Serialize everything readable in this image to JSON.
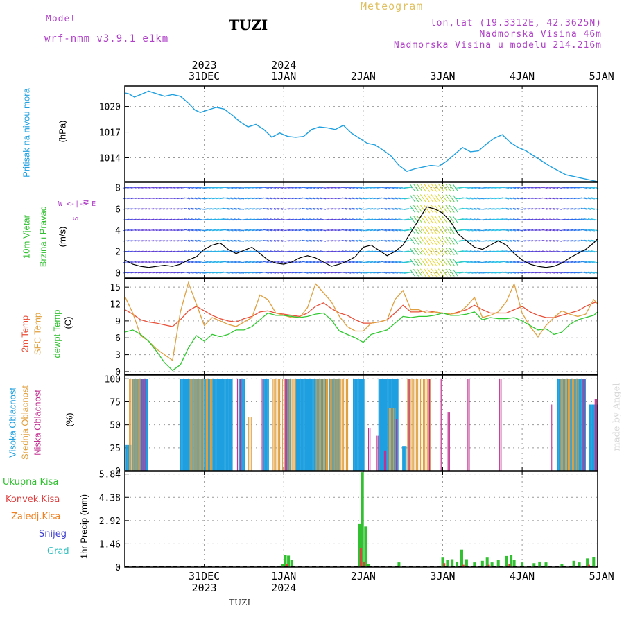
{
  "header": {
    "model_label": "Model",
    "model_name": "wrf-nmm_v3.9.1 e1km",
    "station": "TUZI",
    "meteogram": "Meteogram",
    "lonlat": "lon,lat (19.3312E, 42.3625N)",
    "elev": "Nadmorska Visina 46m",
    "elev_model": "Nadmorska Visina u modelu 214.216m"
  },
  "footer": {
    "station": "TUZI",
    "credit": "made by Angel"
  },
  "colors": {
    "pressure": "#1ea0e0",
    "temp2m": "#e8503a",
    "sfc": "#e0a040",
    "dewpt": "#30c830",
    "high": "#1ea0e0",
    "mid": "#e0a040",
    "low": "#c03090",
    "total": "#30c030",
    "conv": "#e04040",
    "frozen": "#f08020",
    "snow": "#4040d0",
    "grad": "#30c0c0"
  },
  "chart_data": [
    {
      "type": "line",
      "panel": "pressure",
      "title": "",
      "ylabel": [
        "Pritisak na nivou mora",
        "(hPa)"
      ],
      "yticks": [
        1014,
        1017,
        1020
      ],
      "ylim": [
        1011.2,
        1022.4
      ],
      "xticks_top": [
        {
          "day": "31DEC",
          "year": "2023",
          "x": 0.5
        },
        {
          "day": "1JAN",
          "year": "2024",
          "x": 1.5
        },
        {
          "day": "2JAN",
          "x": 2.5
        },
        {
          "day": "3JAN",
          "x": 3.5
        },
        {
          "day": "4JAN",
          "x": 4.5
        },
        {
          "day": "5JAN",
          "x": 5.5
        }
      ],
      "xlim": [
        -0.5,
        5.45
      ],
      "x": [
        -0.5,
        -0.45,
        -0.38,
        -0.3,
        -0.2,
        -0.1,
        0.0,
        0.1,
        0.2,
        0.3,
        0.38,
        0.45,
        0.55,
        0.65,
        0.75,
        0.85,
        0.95,
        1.05,
        1.15,
        1.25,
        1.35,
        1.45,
        1.55,
        1.65,
        1.75,
        1.85,
        1.95,
        2.05,
        2.15,
        2.25,
        2.35,
        2.45,
        2.55,
        2.65,
        2.75,
        2.85,
        2.95,
        3.05,
        3.15,
        3.25,
        3.35,
        3.45,
        3.55,
        3.65,
        3.75,
        3.85,
        3.95,
        4.05,
        4.15,
        4.25,
        4.35,
        4.45,
        4.55,
        4.65,
        4.75,
        4.85,
        4.95,
        5.05,
        5.15,
        5.25,
        5.35,
        5.45
      ],
      "y": [
        1021.6,
        1021.5,
        1021.1,
        1021.4,
        1021.8,
        1021.5,
        1021.2,
        1021.4,
        1021.2,
        1020.4,
        1019.6,
        1019.3,
        1019.6,
        1019.9,
        1019.7,
        1019.0,
        1018.2,
        1017.6,
        1017.9,
        1017.3,
        1016.4,
        1016.9,
        1016.5,
        1016.4,
        1016.5,
        1017.3,
        1017.6,
        1017.5,
        1017.3,
        1017.8,
        1016.9,
        1016.3,
        1015.7,
        1015.5,
        1014.9,
        1014.2,
        1013.1,
        1012.4,
        1012.7,
        1012.9,
        1013.1,
        1013.0,
        1013.6,
        1014.4,
        1015.2,
        1014.7,
        1014.8,
        1015.6,
        1016.3,
        1016.7,
        1015.8,
        1015.2,
        1014.8,
        1014.2,
        1013.6,
        1013.0,
        1012.5,
        1012.0,
        1011.8,
        1011.6,
        1011.4,
        1011.2
      ]
    },
    {
      "type": "line",
      "panel": "wind",
      "ylabel": [
        "10m Vjetar",
        "Brzina i Pravac",
        "(m/s)"
      ],
      "compass": [
        "N",
        "W <-|-> E",
        "S"
      ],
      "yticks": [
        0,
        2,
        4,
        6,
        8
      ],
      "ylim": [
        -0.5,
        8.5
      ],
      "x": [
        -0.5,
        -0.4,
        -0.3,
        -0.2,
        -0.1,
        0.0,
        0.1,
        0.2,
        0.3,
        0.4,
        0.5,
        0.6,
        0.7,
        0.8,
        0.9,
        1.0,
        1.1,
        1.2,
        1.3,
        1.4,
        1.5,
        1.6,
        1.7,
        1.8,
        1.9,
        2.0,
        2.1,
        2.2,
        2.3,
        2.4,
        2.5,
        2.6,
        2.7,
        2.8,
        2.9,
        3.0,
        3.1,
        3.2,
        3.3,
        3.4,
        3.5,
        3.6,
        3.7,
        3.8,
        3.9,
        4.0,
        4.1,
        4.2,
        4.3,
        4.4,
        4.5,
        4.6,
        4.7,
        4.8,
        4.9,
        5.0,
        5.1,
        5.2,
        5.3,
        5.4,
        5.45
      ],
      "y": [
        1.2,
        0.8,
        0.6,
        0.5,
        0.6,
        0.7,
        0.6,
        0.8,
        1.2,
        1.5,
        2.2,
        2.6,
        2.8,
        2.2,
        1.8,
        2.1,
        2.4,
        1.8,
        1.2,
        0.9,
        0.8,
        1.0,
        1.4,
        1.6,
        1.4,
        1.0,
        0.6,
        0.8,
        1.1,
        1.5,
        2.4,
        2.6,
        2.1,
        1.6,
        2.0,
        2.6,
        3.8,
        5.0,
        6.2,
        6.0,
        5.6,
        4.8,
        3.6,
        3.0,
        2.4,
        2.2,
        2.6,
        3.0,
        2.6,
        1.8,
        1.2,
        0.8,
        0.6,
        0.5,
        0.6,
        0.9,
        1.4,
        1.8,
        2.2,
        2.8,
        3.2
      ]
    },
    {
      "type": "line",
      "panel": "temperature",
      "ylabel": [
        "2m Temp",
        "SFC Temp",
        "dewpt Temp",
        "(C)"
      ],
      "yticks": [
        0,
        3,
        6,
        9,
        12,
        15
      ],
      "ylim": [
        -0.5,
        16.5
      ],
      "x": [
        -0.5,
        -0.4,
        -0.3,
        -0.2,
        -0.1,
        0.0,
        0.1,
        0.2,
        0.3,
        0.4,
        0.5,
        0.6,
        0.7,
        0.8,
        0.9,
        1.0,
        1.1,
        1.2,
        1.3,
        1.4,
        1.5,
        1.6,
        1.7,
        1.8,
        1.9,
        2.0,
        2.1,
        2.2,
        2.3,
        2.4,
        2.5,
        2.6,
        2.7,
        2.8,
        2.9,
        3.0,
        3.1,
        3.2,
        3.3,
        3.4,
        3.5,
        3.6,
        3.7,
        3.8,
        3.9,
        4.0,
        4.1,
        4.2,
        4.3,
        4.4,
        4.5,
        4.6,
        4.7,
        4.8,
        4.9,
        5.0,
        5.1,
        5.2,
        5.3,
        5.4,
        5.45
      ],
      "series": [
        {
          "name": "2m Temp",
          "key": "temp2m",
          "values": [
            11.0,
            10.2,
            9.2,
            8.8,
            8.6,
            8.3,
            8.0,
            9.2,
            10.8,
            11.6,
            10.8,
            10.0,
            9.4,
            9.0,
            8.8,
            9.4,
            9.8,
            10.6,
            10.8,
            10.4,
            10.2,
            10.0,
            9.8,
            10.4,
            11.6,
            12.2,
            11.2,
            10.4,
            10.0,
            9.2,
            8.6,
            8.6,
            8.8,
            9.2,
            10.4,
            11.8,
            10.6,
            10.6,
            10.8,
            10.6,
            10.4,
            10.2,
            10.6,
            11.0,
            11.8,
            11.0,
            10.4,
            10.4,
            10.4,
            11.0,
            11.6,
            10.6,
            10.0,
            9.6,
            9.6,
            10.0,
            10.4,
            10.8,
            11.6,
            12.2,
            12.4
          ]
        },
        {
          "name": "SFC Temp",
          "key": "sfc",
          "values": [
            13.4,
            10.4,
            6.4,
            5.4,
            4.0,
            3.0,
            2.0,
            10.6,
            15.8,
            12.0,
            8.2,
            9.6,
            9.0,
            8.4,
            8.0,
            8.8,
            9.6,
            13.6,
            12.8,
            10.4,
            10.0,
            9.6,
            9.6,
            11.4,
            15.6,
            14.0,
            12.4,
            9.8,
            8.0,
            7.2,
            7.2,
            8.6,
            8.8,
            9.2,
            12.8,
            14.4,
            11.0,
            11.0,
            10.4,
            10.6,
            10.4,
            10.2,
            10.4,
            11.6,
            13.2,
            9.6,
            10.0,
            10.6,
            12.4,
            15.6,
            10.4,
            8.0,
            6.2,
            8.2,
            9.6,
            10.8,
            10.2,
            9.8,
            10.2,
            12.8,
            12.0
          ]
        },
        {
          "name": "dewpt Temp",
          "key": "dewpt",
          "values": [
            7.0,
            7.4,
            6.6,
            5.4,
            3.6,
            1.6,
            0.2,
            1.2,
            4.2,
            6.4,
            5.4,
            6.6,
            6.2,
            6.6,
            7.4,
            7.4,
            8.0,
            9.2,
            10.4,
            10.0,
            10.0,
            9.8,
            9.6,
            9.8,
            10.2,
            10.4,
            9.2,
            7.2,
            6.6,
            6.0,
            5.2,
            6.6,
            7.0,
            7.4,
            8.6,
            9.8,
            9.6,
            9.8,
            9.8,
            10.0,
            10.4,
            10.0,
            10.0,
            10.2,
            10.6,
            9.2,
            9.6,
            9.4,
            9.4,
            9.6,
            9.0,
            8.2,
            7.4,
            7.6,
            6.6,
            7.0,
            8.4,
            9.2,
            9.6,
            10.0,
            10.6
          ]
        }
      ]
    },
    {
      "type": "bar",
      "panel": "clouds",
      "ylabel": [
        "Visoka Oblacnost",
        "Srednja Oblacnost",
        "Niska Oblacnost",
        "(%)"
      ],
      "yticks": [
        0,
        25,
        50,
        75,
        100
      ],
      "ylim": [
        0,
        104
      ],
      "series": [
        {
          "name": "Visoka Oblacnost",
          "key": "high",
          "spans": [
            [
              -0.48,
              -0.42,
              28
            ],
            [
              -0.4,
              -0.22,
              100
            ],
            [
              0.2,
              0.85,
              100
            ],
            [
              0.95,
              1.02,
              100
            ],
            [
              1.25,
              1.32,
              100
            ],
            [
              1.55,
              1.6,
              100
            ],
            [
              1.65,
              2.05,
              100
            ],
            [
              2.08,
              2.22,
              100
            ],
            [
              2.38,
              2.52,
              100
            ],
            [
              2.7,
              2.95,
              100
            ],
            [
              3.0,
              3.05,
              27
            ],
            [
              4.95,
              5.3,
              100
            ],
            [
              5.35,
              5.45,
              72
            ]
          ]
        },
        {
          "name": "Srednja Oblacnost",
          "key": "mid",
          "spans": [
            [
              -0.45,
              -0.3,
              100
            ],
            [
              0.3,
              0.6,
              100
            ],
            [
              1.05,
              1.1,
              58
            ],
            [
              1.35,
              1.65,
              100
            ],
            [
              1.9,
              2.3,
              100
            ],
            [
              2.82,
              2.9,
              68
            ],
            [
              3.05,
              3.35,
              100
            ],
            [
              4.98,
              5.2,
              100
            ]
          ]
        },
        {
          "name": "Niska Oblacnost",
          "key": "low",
          "spans": [
            [
              -0.3,
              -0.25,
              100
            ],
            [
              0.9,
              0.95,
              100
            ],
            [
              1.2,
              1.22,
              100
            ],
            [
              1.5,
              1.52,
              100
            ],
            [
              2.55,
              2.57,
              46
            ],
            [
              2.65,
              2.67,
              38
            ],
            [
              2.75,
              2.77,
              22
            ],
            [
              2.88,
              2.9,
              56
            ],
            [
              3.05,
              3.07,
              100
            ],
            [
              3.3,
              3.32,
              100
            ],
            [
              3.45,
              3.47,
              100
            ],
            [
              3.55,
              3.57,
              64
            ],
            [
              3.8,
              3.82,
              100
            ],
            [
              4.2,
              4.22,
              100
            ],
            [
              4.85,
              4.87,
              72
            ],
            [
              5.25,
              5.28,
              100
            ],
            [
              5.4,
              5.42,
              78
            ]
          ]
        }
      ]
    },
    {
      "type": "bar",
      "panel": "precip",
      "ylabel": [
        "1hr Precip (mm)"
      ],
      "legend": [
        {
          "label": "Ukupna Kisa",
          "key": "total"
        },
        {
          "label": "Konvek.Kisa",
          "key": "conv"
        },
        {
          "label": "Zaledj.Kisa",
          "key": "frozen"
        },
        {
          "label": "Snijeg",
          "key": "snow"
        },
        {
          "label": "Grad",
          "key": "grad"
        }
      ],
      "yticks": [
        0,
        1.46,
        2.92,
        4.38,
        5.84
      ],
      "ytick_labels": [
        "0",
        "1.46",
        "2.92",
        "4.38",
        "5.84"
      ],
      "ylim": [
        0,
        6.0
      ],
      "xticks_bottom": [
        {
          "day": "31DEC",
          "year": "2023",
          "x": 0.5
        },
        {
          "day": "1JAN",
          "year": "2024",
          "x": 1.5
        },
        {
          "day": "2JAN",
          "x": 2.5
        },
        {
          "day": "3JAN",
          "x": 3.5
        },
        {
          "day": "4JAN",
          "x": 4.5
        },
        {
          "day": "5JAN",
          "x": 5.5
        }
      ],
      "total": [
        [
          1.48,
          0.2
        ],
        [
          1.52,
          0.75
        ],
        [
          1.56,
          0.72
        ],
        [
          1.6,
          0.45
        ],
        [
          2.45,
          2.7
        ],
        [
          2.49,
          5.95
        ],
        [
          2.53,
          2.55
        ],
        [
          2.57,
          0.2
        ],
        [
          2.95,
          0.3
        ],
        [
          3.5,
          0.6
        ],
        [
          3.56,
          0.45
        ],
        [
          3.62,
          0.5
        ],
        [
          3.68,
          0.35
        ],
        [
          3.74,
          1.1
        ],
        [
          3.8,
          0.5
        ],
        [
          3.9,
          0.3
        ],
        [
          4.0,
          0.4
        ],
        [
          4.06,
          0.6
        ],
        [
          4.12,
          0.3
        ],
        [
          4.2,
          0.45
        ],
        [
          4.3,
          0.7
        ],
        [
          4.36,
          0.75
        ],
        [
          4.4,
          0.45
        ],
        [
          4.5,
          0.3
        ],
        [
          4.65,
          0.25
        ],
        [
          4.72,
          0.35
        ],
        [
          4.8,
          0.3
        ],
        [
          5.0,
          0.2
        ],
        [
          5.15,
          0.4
        ],
        [
          5.22,
          0.3
        ],
        [
          5.32,
          0.55
        ],
        [
          5.4,
          0.65
        ]
      ],
      "conv": [
        [
          1.54,
          0.2
        ],
        [
          2.47,
          1.2
        ],
        [
          2.51,
          0.35
        ],
        [
          3.52,
          0.25
        ],
        [
          3.76,
          0.15
        ],
        [
          4.08,
          0.15
        ],
        [
          4.34,
          0.2
        ],
        [
          5.34,
          0.15
        ]
      ]
    }
  ]
}
